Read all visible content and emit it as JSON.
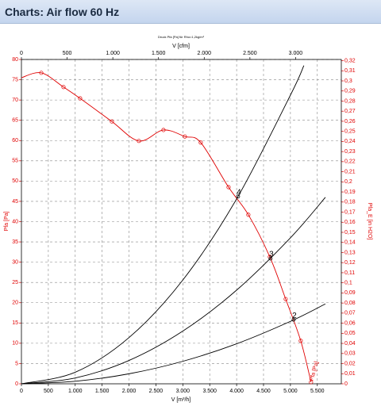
{
  "header": {
    "title": "Charts: Air flow 60 Hz"
  },
  "chart_data": {
    "type": "line",
    "title": "Druck Pfa [Pa] für Rho=1,2kg/m³",
    "x_label": "V [m³/h]",
    "x2_label": "V [cfm]",
    "y_label": "Pfa [Pa]",
    "y2_label": "Pfa_E [in H2O]",
    "xlim": [
      0,
      5946
    ],
    "x2lim": [
      0,
      3500
    ],
    "ylim": [
      0,
      80
    ],
    "y2lim": [
      0,
      0.3212
    ],
    "xticks": [
      0,
      500,
      {
        "value": 1000,
        "label": "1.000"
      },
      {
        "value": 1500,
        "label": "1.500"
      },
      {
        "value": 2000,
        "label": "2.000"
      },
      {
        "value": 2500,
        "label": "2.500"
      },
      {
        "value": 3000,
        "label": "3.000"
      },
      {
        "value": 3500,
        "label": "3.500"
      },
      {
        "value": 4000,
        "label": "4.000"
      },
      {
        "value": 4500,
        "label": "4.500"
      },
      {
        "value": 5000,
        "label": "5.000"
      },
      {
        "value": 5500,
        "label": "5.500"
      }
    ],
    "x2ticks": [
      0,
      500,
      {
        "value": 1000,
        "label": "1.000"
      },
      {
        "value": 1500,
        "label": "1.500"
      },
      {
        "value": 2000,
        "label": "2.000"
      },
      {
        "value": 2500,
        "label": "2.500"
      },
      {
        "value": 3000,
        "label": "3.000"
      }
    ],
    "yticks": [
      0,
      5,
      10,
      15,
      20,
      25,
      30,
      35,
      40,
      45,
      50,
      55,
      60,
      65,
      70,
      75,
      80
    ],
    "y2ticks": [
      0,
      {
        "value": 0.01,
        "label": "0,01"
      },
      {
        "value": 0.02,
        "label": "0,02"
      },
      {
        "value": 0.03,
        "label": "0,03"
      },
      {
        "value": 0.04,
        "label": "0,04"
      },
      {
        "value": 0.05,
        "label": "0,05"
      },
      {
        "value": 0.06,
        "label": "0,06"
      },
      {
        "value": 0.07,
        "label": "0,07"
      },
      {
        "value": 0.08,
        "label": "0,08"
      },
      {
        "value": 0.09,
        "label": "0,09"
      },
      {
        "value": 0.1,
        "label": "0,1"
      },
      {
        "value": 0.11,
        "label": "0,11"
      },
      {
        "value": 0.12,
        "label": "0,12"
      },
      {
        "value": 0.13,
        "label": "0,13"
      },
      {
        "value": 0.14,
        "label": "0,14"
      },
      {
        "value": 0.15,
        "label": "0,15"
      },
      {
        "value": 0.16,
        "label": "0,16"
      },
      {
        "value": 0.17,
        "label": "0,17"
      },
      {
        "value": 0.18,
        "label": "0,18"
      },
      {
        "value": 0.19,
        "label": "0,19"
      },
      {
        "value": 0.2,
        "label": "0,2"
      },
      {
        "value": 0.21,
        "label": "0,21"
      },
      {
        "value": 0.22,
        "label": "0,22"
      },
      {
        "value": 0.23,
        "label": "0,23"
      },
      {
        "value": 0.24,
        "label": "0,24"
      },
      {
        "value": 0.25,
        "label": "0,25"
      },
      {
        "value": 0.26,
        "label": "0,26"
      },
      {
        "value": 0.27,
        "label": "0,27"
      },
      {
        "value": 0.28,
        "label": "0,28"
      },
      {
        "value": 0.29,
        "label": "0,29"
      },
      {
        "value": 0.3,
        "label": "0,3"
      },
      {
        "value": 0.31,
        "label": "0,31"
      },
      {
        "value": 0.32,
        "label": "0,32"
      }
    ],
    "grid": true,
    "series": [
      {
        "name": "Pfa [Pa]",
        "color": "#e00000",
        "markers": true,
        "x": [
          0,
          369,
          782,
          1091,
          1681,
          2183,
          2640,
          3038,
          3333,
          3850,
          4218,
          4617,
          4912,
          5192,
          5383
        ],
        "values": [
          75.5,
          76.7,
          73.2,
          70.4,
          64.7,
          59.9,
          62.6,
          61.0,
          59.5,
          48.5,
          41.7,
          31.3,
          20.9,
          10.6,
          0.4
        ]
      },
      {
        "color": "#000000",
        "markers": false,
        "x": [
          0,
          1000,
          2000,
          3000,
          4000,
          5000,
          5250
        ],
        "values": [
          0,
          2.85,
          11.4,
          25.6,
          45.6,
          71.2,
          78.5
        ]
      },
      {
        "color": "#000000",
        "markers": false,
        "x": [
          0,
          1000,
          2000,
          3000,
          4000,
          5000,
          5650
        ],
        "values": [
          0,
          1.44,
          5.76,
          13.0,
          23.1,
          36.0,
          46.0
        ]
      },
      {
        "color": "#000000",
        "markers": false,
        "x": [
          0,
          1000,
          2000,
          3000,
          4000,
          5000,
          5650
        ],
        "values": [
          0,
          0.62,
          2.47,
          5.55,
          9.87,
          15.4,
          19.7
        ]
      }
    ],
    "operating_points": [
      {
        "label": "4",
        "x": 4027,
        "y": 46.2
      },
      {
        "label": "3",
        "x": 4631,
        "y": 30.9
      },
      {
        "label": "2",
        "x": 5059,
        "y": 15.8
      }
    ]
  }
}
